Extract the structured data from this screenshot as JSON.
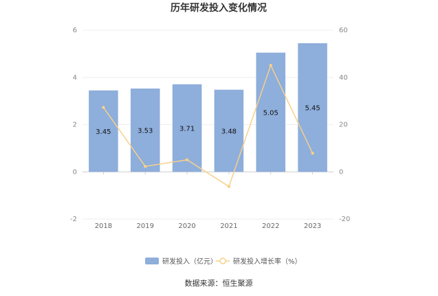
{
  "chart_data": {
    "type": "bar",
    "title": "历年研发投入变化情况",
    "categories": [
      "2018",
      "2019",
      "2020",
      "2021",
      "2022",
      "2023"
    ],
    "series": [
      {
        "name": "研发投入（亿元）",
        "type": "bar",
        "axis": "left",
        "values": [
          3.45,
          3.53,
          3.71,
          3.48,
          5.05,
          5.45
        ],
        "labels": [
          "3.45",
          "3.53",
          "3.71",
          "3.48",
          "5.05",
          "5.45"
        ],
        "color": "#8eaedb"
      },
      {
        "name": "研发投入增长率（%）",
        "type": "line",
        "axis": "right",
        "values": [
          27.3,
          2.3,
          5.1,
          -6.2,
          45.1,
          7.9
        ],
        "color": "#f7d08a"
      }
    ],
    "left_axis": {
      "ylim": [
        -2,
        6
      ],
      "ticks": [
        "6",
        "4",
        "2",
        "0",
        "-2"
      ]
    },
    "right_axis": {
      "ylim": [
        -20,
        60
      ],
      "ticks": [
        "60",
        "40",
        "20",
        "0",
        "-20"
      ]
    },
    "grid": true,
    "legend": "bottom-center"
  },
  "source": "数据来源：恒生聚源"
}
